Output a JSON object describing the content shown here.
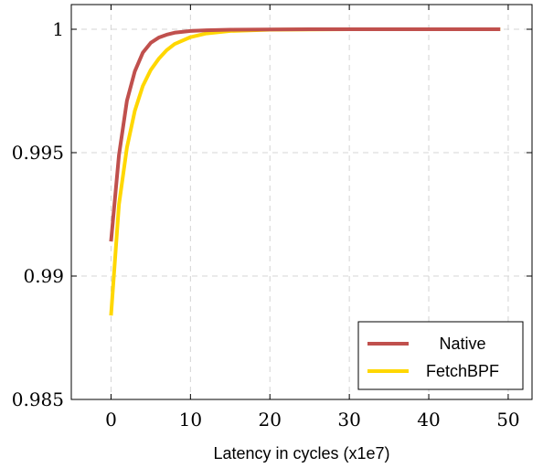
{
  "chart_data": {
    "type": "line",
    "title": "",
    "xlabel": "Latency in cycles (x1e7)",
    "ylabel": "",
    "xlim": [
      -5,
      53
    ],
    "ylim": [
      0.985,
      1.001
    ],
    "xticks": [
      0,
      10,
      20,
      30,
      40,
      50
    ],
    "xtick_labels": [
      "0",
      "10",
      "20",
      "30",
      "40",
      "50"
    ],
    "yticks": [
      0.985,
      0.99,
      0.995,
      1
    ],
    "ytick_labels": [
      "0.985",
      "0.99",
      "0.995",
      "1"
    ],
    "grid": true,
    "legend_position": "bottom-right",
    "series": [
      {
        "name": "Native",
        "color": "#c0504d",
        "x": [
          0,
          1,
          2,
          3,
          4,
          5,
          6,
          7,
          8,
          10,
          12,
          15,
          20,
          25,
          30,
          40,
          49
        ],
        "y": [
          0.9914,
          0.9949,
          0.9971,
          0.9983,
          0.99905,
          0.99945,
          0.99966,
          0.99978,
          0.99986,
          0.99993,
          0.99996,
          0.99998,
          0.99999,
          1.0,
          1.0,
          1.0,
          1.0
        ]
      },
      {
        "name": "FetchBPF",
        "color": "#ffd700",
        "x": [
          0,
          1,
          2,
          3,
          4,
          5,
          6,
          7,
          8,
          10,
          12,
          15,
          20,
          25,
          30,
          40,
          49
        ],
        "y": [
          0.9884,
          0.9929,
          0.9952,
          0.9967,
          0.9977,
          0.99835,
          0.9988,
          0.99915,
          0.9994,
          0.99968,
          0.99983,
          0.99993,
          0.99998,
          0.99999,
          1.0,
          1.0,
          1.0
        ]
      }
    ]
  }
}
